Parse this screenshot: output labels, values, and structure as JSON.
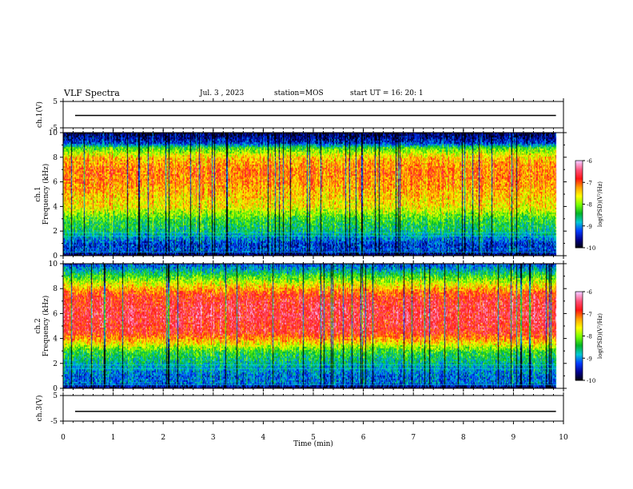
{
  "header": {
    "title": "VLF Spectra",
    "date": "Jul. 3 , 2023",
    "station": "station=MOS",
    "start": "start UT = 16: 20: 1"
  },
  "colors": {
    "colormap": [
      "#f5d0ff",
      "#ff1010",
      "#ffa500",
      "#ffff00",
      "#80ff00",
      "#00c000",
      "#00d0d0",
      "#0050ff",
      "#0000a0",
      "#000000"
    ]
  },
  "chart_data": [
    {
      "type": "line",
      "panel": "channel-1-voltage",
      "ylabel": "ch.1(V)",
      "ylim": [
        -5,
        5
      ],
      "yticks": [
        "5",
        "-5"
      ],
      "xlim": [
        0,
        10
      ],
      "series": [
        {
          "values_constant": -0.3
        }
      ]
    },
    {
      "type": "heatmap",
      "panel": "channel-1-spectrogram",
      "ylabel": "ch.1 Frequency (kHz)",
      "ylim": [
        0,
        10
      ],
      "yticks": [
        "0",
        "2",
        "4",
        "6",
        "8",
        "10"
      ],
      "xlim": [
        0,
        10
      ],
      "data_end_min": 9.85,
      "colorbar": {
        "label": "log(PSD)(V²/Hz)",
        "range": [
          -10,
          -6
        ],
        "ticks": [
          "-6",
          "-7",
          "-8",
          "-9",
          "-10"
        ]
      },
      "intensity_profile": {
        "freq_khz": [
          0,
          0.5,
          1,
          2,
          3,
          4,
          5,
          6,
          7,
          8,
          8.8,
          9.2,
          10
        ],
        "log_psd": [
          -10,
          -9.2,
          -9.3,
          -8.6,
          -8.3,
          -7.6,
          -7.4,
          -7.2,
          -7.1,
          -7.4,
          -8.2,
          -9.3,
          -9.8
        ]
      }
    },
    {
      "type": "heatmap",
      "panel": "channel-2-spectrogram",
      "ylabel": "ch.2 Frequency (kHz)",
      "ylim": [
        0,
        10
      ],
      "yticks": [
        "0",
        "2",
        "4",
        "6",
        "8",
        "10"
      ],
      "xlim": [
        0,
        10
      ],
      "data_end_min": 9.85,
      "colorbar": {
        "label": "log(PSD)(V²/Hz)",
        "range": [
          -10,
          -6
        ],
        "ticks": [
          "-6",
          "-7",
          "-8",
          "-9",
          "-10"
        ]
      },
      "intensity_profile": {
        "freq_khz": [
          0,
          0.5,
          1,
          2,
          3,
          3.6,
          4.5,
          5,
          6,
          7,
          7.6,
          8.5,
          9.2,
          10
        ],
        "log_psd": [
          -10,
          -9.0,
          -9.1,
          -8.7,
          -8.3,
          -7.6,
          -6.8,
          -6.7,
          -6.6,
          -6.7,
          -6.9,
          -7.7,
          -8.4,
          -9.2
        ]
      }
    },
    {
      "type": "line",
      "panel": "channel-3-voltage",
      "ylabel": "ch.3(V)",
      "ylim": [
        -5,
        5
      ],
      "yticks": [
        "5",
        "-5"
      ],
      "xlim": [
        0,
        10
      ],
      "series": [
        {
          "values_constant": -1.2
        }
      ]
    }
  ],
  "xaxis": {
    "label": "Time (min)",
    "ticks": [
      "0",
      "1",
      "2",
      "3",
      "4",
      "5",
      "6",
      "7",
      "8",
      "9",
      "10"
    ]
  }
}
